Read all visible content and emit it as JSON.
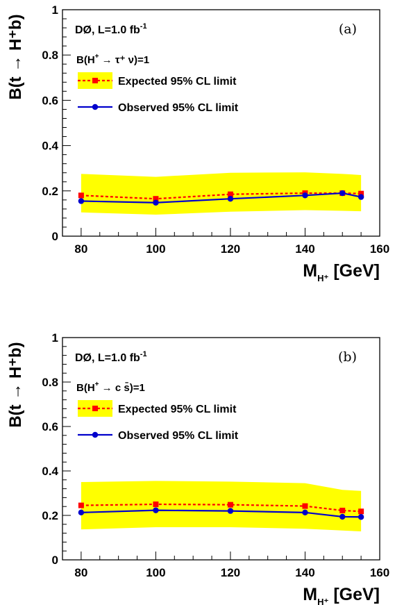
{
  "chart_data": [
    {
      "type": "line",
      "panel_label": "(a)",
      "experiment": "DØ, L=1.0 fb",
      "experiment_sup": "-1",
      "decay_mode_label_prefix": "B(H",
      "decay_mode_label_sup": "+",
      "decay_mode_label_suffix": " → τ⁺ ν)=1",
      "ylabel": "B(t → H⁺b)",
      "xlabel": "M",
      "xlabel_sub": "H⁺",
      "xlabel_unit": " [GeV]",
      "xlim": [
        75,
        160
      ],
      "ylim": [
        0,
        1
      ],
      "x_ticks": [
        80,
        100,
        120,
        140,
        160
      ],
      "x_tick_labels": [
        "80",
        "100",
        "120",
        "140",
        "160"
      ],
      "y_ticks": [
        0,
        0.2,
        0.4,
        0.6,
        0.8,
        1
      ],
      "y_tick_labels": [
        "0",
        "0.2",
        "0.4",
        "0.6",
        "0.8",
        "1"
      ],
      "legend": [
        "Expected 95% CL limit",
        "Observed 95% CL limit"
      ],
      "legend_position": "upper-left",
      "x": [
        80,
        100,
        120,
        140,
        150,
        155
      ],
      "series": [
        {
          "name": "Expected 95% CL limit",
          "values": [
            0.18,
            0.165,
            0.185,
            0.19,
            0.19,
            0.188
          ],
          "color": "#ff0000",
          "marker": "square",
          "line": "dashed"
        },
        {
          "name": "Observed 95% CL limit",
          "values": [
            0.155,
            0.148,
            0.165,
            0.18,
            0.19,
            0.173
          ],
          "color": "#0000cc",
          "marker": "circle",
          "line": "solid"
        }
      ],
      "band": {
        "upper": [
          0.275,
          0.262,
          0.28,
          0.282,
          0.275,
          0.27
        ],
        "lower": [
          0.105,
          0.095,
          0.108,
          0.115,
          0.112,
          0.11
        ],
        "color": "#ffff00"
      }
    },
    {
      "type": "line",
      "panel_label": "(b)",
      "experiment": "DØ, L=1.0 fb",
      "experiment_sup": "-1",
      "decay_mode_label_prefix": "B(H",
      "decay_mode_label_sup": "+",
      "decay_mode_label_suffix": " → c s̄)=1",
      "ylabel": "B(t → H⁺b)",
      "xlabel": "M",
      "xlabel_sub": "H⁺",
      "xlabel_unit": " [GeV]",
      "xlim": [
        75,
        160
      ],
      "ylim": [
        0,
        1
      ],
      "x_ticks": [
        80,
        100,
        120,
        140,
        160
      ],
      "x_tick_labels": [
        "80",
        "100",
        "120",
        "140",
        "160"
      ],
      "y_ticks": [
        0,
        0.2,
        0.4,
        0.6,
        0.8,
        1
      ],
      "y_tick_labels": [
        "0",
        "0.2",
        "0.4",
        "0.6",
        "0.8",
        "1"
      ],
      "legend": [
        "Expected 95% CL limit",
        "Observed 95% CL limit"
      ],
      "legend_position": "upper-left",
      "x": [
        80,
        100,
        120,
        140,
        150,
        155
      ],
      "series": [
        {
          "name": "Expected 95% CL limit",
          "values": [
            0.245,
            0.25,
            0.248,
            0.242,
            0.222,
            0.218
          ],
          "color": "#ff0000",
          "marker": "square",
          "line": "dashed"
        },
        {
          "name": "Observed 95% CL limit",
          "values": [
            0.213,
            0.223,
            0.22,
            0.213,
            0.194,
            0.193
          ],
          "color": "#0000cc",
          "marker": "circle",
          "line": "solid"
        }
      ],
      "band": {
        "upper": [
          0.35,
          0.355,
          0.352,
          0.345,
          0.315,
          0.31
        ],
        "lower": [
          0.137,
          0.147,
          0.147,
          0.14,
          0.132,
          0.128
        ],
        "color": "#ffff00"
      }
    }
  ]
}
